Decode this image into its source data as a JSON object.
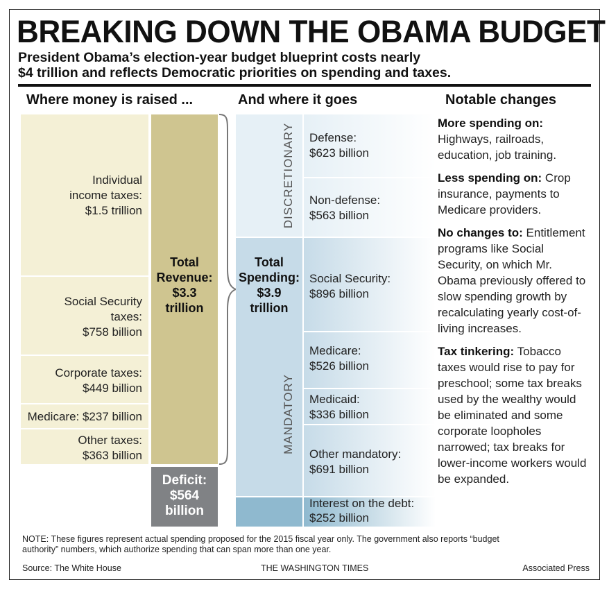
{
  "title": "BREAKING DOWN THE OBAMA BUDGET",
  "subtitle_line1": "President Obama’s election-year budget blueprint costs nearly",
  "subtitle_line2": "$4 trillion and reflects Democratic priorities on spending and taxes.",
  "headers": {
    "raised": "Where money is raised ...",
    "goes": "And where it goes",
    "changes": "Notable changes"
  },
  "revenue": {
    "items": [
      {
        "label_lines": [
          "Individual",
          "income taxes:",
          "$1.5 trillion"
        ]
      },
      {
        "label_lines": [
          "Social Security",
          "taxes:",
          "$758 billion"
        ]
      },
      {
        "label_lines": [
          "Corporate taxes:",
          "$449 billion"
        ]
      },
      {
        "label_lines": [
          "Medicare: $237 billion"
        ]
      },
      {
        "label_lines": [
          "Other taxes:",
          "$363 billion"
        ]
      }
    ],
    "total_lines": [
      "Total",
      "Revenue:",
      "$3.3",
      "trillion"
    ],
    "deficit_lines": [
      "Deficit:",
      "$564",
      "billion"
    ]
  },
  "spending": {
    "total_lines": [
      "Total",
      "Spending:",
      "$3.9",
      "trillion"
    ],
    "discretionary_label": "DISCRETIONARY",
    "mandatory_label": "MANDATORY",
    "items": [
      {
        "label_lines": [
          "Defense:",
          "$623 billion"
        ]
      },
      {
        "label_lines": [
          "Non-defense:",
          "$563 billion"
        ]
      },
      {
        "label_lines": [
          "Social Security:",
          "$896 billion"
        ]
      },
      {
        "label_lines": [
          "Medicare:",
          "$526 billion"
        ]
      },
      {
        "label_lines": [
          "Medicaid:",
          "$336 billion"
        ]
      },
      {
        "label_lines": [
          "Other mandatory:",
          "$691 billion"
        ]
      },
      {
        "label_lines": [
          "Interest on the debt:",
          "$252 billion"
        ]
      }
    ]
  },
  "changes": [
    {
      "head": "More spending on:",
      "body": "Highways, railroads, education, job training."
    },
    {
      "head": "Less spending on:",
      "body": "Crop insurance, payments to Medicare providers."
    },
    {
      "head": "No changes to:",
      "body": "Entitlement programs like Social Security, on which Mr. Obama previously offered to slow spending growth by recalculating yearly cost-of-living increases."
    },
    {
      "head": "Tax tinkering:",
      "body": "Tobacco taxes would rise to pay for preschool; some tax breaks used by the wealthy would be eliminated and some corporate loopholes narrowed; tax breaks for lower-income workers would be expanded."
    }
  ],
  "note_line1": "NOTE: These figures represent actual spending proposed for the 2015 fiscal year only. The government also reports “budget",
  "note_line2": "authority” numbers, which authorize spending that can span more than one year.",
  "footer": {
    "source": "Source: The White House",
    "publisher": "THE WASHINGTON TIMES",
    "credit": "Associated Press"
  },
  "colors": {
    "revenue_light": "#f4f0d6",
    "revenue_dark": "#cfc590",
    "deficit": "#808285",
    "spending_light": "#e6f0f6",
    "spending_mid": "#c6dbe8",
    "spending_dark": "#8fb9cf"
  },
  "chart_data": {
    "type": "table",
    "title": "BREAKING DOWN THE OBAMA BUDGET",
    "revenue": [
      {
        "category": "Individual income taxes",
        "value": 1500
      },
      {
        "category": "Social Security taxes",
        "value": 758
      },
      {
        "category": "Corporate taxes",
        "value": 449
      },
      {
        "category": "Medicare",
        "value": 237
      },
      {
        "category": "Other taxes",
        "value": 363
      }
    ],
    "total_revenue": 3300,
    "deficit": 564,
    "spending": [
      {
        "category": "Defense",
        "group": "DISCRETIONARY",
        "value": 623
      },
      {
        "category": "Non-defense",
        "group": "DISCRETIONARY",
        "value": 563
      },
      {
        "category": "Social Security",
        "group": "MANDATORY",
        "value": 896
      },
      {
        "category": "Medicare",
        "group": "MANDATORY",
        "value": 526
      },
      {
        "category": "Medicaid",
        "group": "MANDATORY",
        "value": 336
      },
      {
        "category": "Other mandatory",
        "group": "MANDATORY",
        "value": 691
      },
      {
        "category": "Interest on the debt",
        "value": 252
      }
    ],
    "total_spending": 3900
  }
}
